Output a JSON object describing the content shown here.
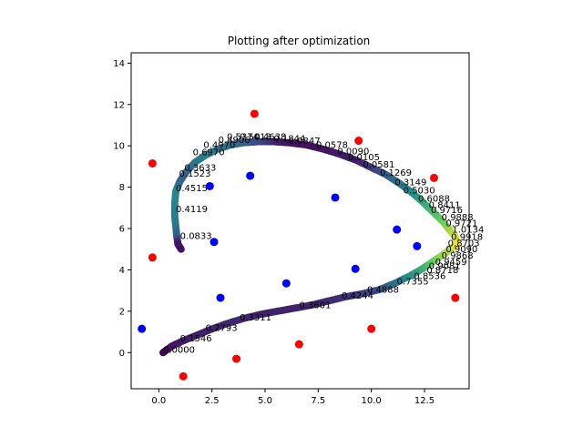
{
  "chart_data": {
    "type": "scatter",
    "title": "Plotting after optimization",
    "xlabel": "",
    "ylabel": "",
    "xlim": [
      -1.3,
      14.6
    ],
    "ylim": [
      -1.75,
      14.5
    ],
    "xticks": [
      0.0,
      2.5,
      5.0,
      7.5,
      10.0,
      12.5
    ],
    "xtick_labels": [
      "0.0",
      "2.5",
      "5.0",
      "7.5",
      "10.0",
      "12.5"
    ],
    "yticks": [
      0,
      2,
      4,
      6,
      8,
      10,
      12,
      14
    ],
    "ytick_labels": [
      "0",
      "2",
      "4",
      "6",
      "8",
      "10",
      "12",
      "14"
    ],
    "grid": false,
    "colors": {
      "red": "#ff0000",
      "blue": "#0000ff",
      "colormap": "viridis"
    },
    "red_points": [
      {
        "x": -0.3,
        "y": 9.15
      },
      {
        "x": -0.3,
        "y": 4.6
      },
      {
        "x": 1.15,
        "y": -1.15
      },
      {
        "x": 3.65,
        "y": -0.3
      },
      {
        "x": 4.5,
        "y": 11.55
      },
      {
        "x": 6.6,
        "y": 0.4
      },
      {
        "x": 9.4,
        "y": 10.25
      },
      {
        "x": 10.0,
        "y": 1.15
      },
      {
        "x": 12.95,
        "y": 8.45
      },
      {
        "x": 13.95,
        "y": 2.65
      }
    ],
    "blue_points": [
      {
        "x": -0.8,
        "y": 1.15
      },
      {
        "x": 2.9,
        "y": 2.65
      },
      {
        "x": 2.4,
        "y": 8.05
      },
      {
        "x": 2.6,
        "y": 5.35
      },
      {
        "x": 4.3,
        "y": 8.55
      },
      {
        "x": 6.0,
        "y": 3.35
      },
      {
        "x": 8.3,
        "y": 7.5
      },
      {
        "x": 9.25,
        "y": 4.05
      },
      {
        "x": 11.2,
        "y": 5.95
      },
      {
        "x": 12.15,
        "y": 5.15
      }
    ],
    "trajectory": {
      "x": [
        0.2,
        0.6,
        1.1,
        1.7,
        2.4,
        3.2,
        4.0,
        4.8,
        5.6,
        6.4,
        7.2,
        8.0,
        8.8,
        9.6,
        10.4,
        11.1,
        11.8,
        12.4,
        12.9,
        13.4,
        13.8,
        14.0,
        14.05,
        13.95,
        13.7,
        13.4,
        12.9,
        12.4,
        11.9,
        11.3,
        10.7,
        10.0,
        9.3,
        8.5,
        7.7,
        6.9,
        6.1,
        5.4,
        4.7,
        4.0,
        3.4,
        2.8,
        2.2,
        1.7,
        1.3,
        1.0,
        0.8,
        0.75,
        0.75,
        0.8,
        0.85,
        0.9,
        1.05
      ],
      "y": [
        0.0,
        0.3,
        0.55,
        0.8,
        1.1,
        1.4,
        1.65,
        1.85,
        2.0,
        2.15,
        2.3,
        2.5,
        2.7,
        2.85,
        3.05,
        3.35,
        3.7,
        4.05,
        4.4,
        4.75,
        5.05,
        5.2,
        5.35,
        5.6,
        5.9,
        6.3,
        6.8,
        7.3,
        7.75,
        8.2,
        8.6,
        8.95,
        9.3,
        9.6,
        9.85,
        10.05,
        10.15,
        10.2,
        10.2,
        10.15,
        10.05,
        9.85,
        9.55,
        9.2,
        8.75,
        8.3,
        7.8,
        7.2,
        6.6,
        6.1,
        5.6,
        5.25,
        5.0
      ],
      "color_values": [
        0.0,
        0.05,
        0.08,
        0.1,
        0.1,
        0.12,
        0.12,
        0.1,
        0.1,
        0.1,
        0.12,
        0.12,
        0.15,
        0.18,
        0.25,
        0.35,
        0.5,
        0.6,
        0.75,
        0.85,
        0.9,
        0.95,
        1.0,
        0.95,
        0.9,
        0.8,
        0.7,
        0.6,
        0.5,
        0.4,
        0.3,
        0.2,
        0.1,
        0.08,
        0.06,
        0.05,
        0.05,
        0.1,
        0.2,
        0.3,
        0.35,
        0.4,
        0.45,
        0.4,
        0.35,
        0.3,
        0.45,
        0.45,
        0.42,
        0.4,
        0.3,
        0.08,
        0.05
      ]
    },
    "annotations": [
      {
        "text": "0.0000",
        "x": 0.2,
        "y": 0.0
      },
      {
        "text": "0.1546",
        "x": 1.0,
        "y": 0.55
      },
      {
        "text": "0.2793",
        "x": 2.2,
        "y": 1.05
      },
      {
        "text": "0.3311",
        "x": 3.8,
        "y": 1.55
      },
      {
        "text": "0.3601",
        "x": 6.6,
        "y": 2.15
      },
      {
        "text": "0.4244",
        "x": 8.6,
        "y": 2.6
      },
      {
        "text": "0.4888",
        "x": 9.8,
        "y": 2.9
      },
      {
        "text": "0.7355",
        "x": 11.2,
        "y": 3.3
      },
      {
        "text": "0.8536",
        "x": 12.0,
        "y": 3.55
      },
      {
        "text": "0.8718",
        "x": 12.6,
        "y": 3.85
      },
      {
        "text": "0.9081",
        "x": 12.7,
        "y": 4.05
      },
      {
        "text": "0.9459",
        "x": 13.0,
        "y": 4.25
      },
      {
        "text": "0.9868",
        "x": 13.3,
        "y": 4.55
      },
      {
        "text": "0.9090",
        "x": 13.5,
        "y": 4.85
      },
      {
        "text": "0.8703",
        "x": 13.6,
        "y": 5.15
      },
      {
        "text": "0.9918",
        "x": 13.75,
        "y": 5.45
      },
      {
        "text": "1.0134",
        "x": 13.8,
        "y": 5.8
      },
      {
        "text": "0.9721",
        "x": 13.5,
        "y": 6.1
      },
      {
        "text": "0.9888",
        "x": 13.3,
        "y": 6.4
      },
      {
        "text": "0.9716",
        "x": 12.8,
        "y": 6.75
      },
      {
        "text": "0.8411",
        "x": 12.7,
        "y": 7.0
      },
      {
        "text": "0.6088",
        "x": 12.2,
        "y": 7.3
      },
      {
        "text": "0.5030",
        "x": 11.5,
        "y": 7.7
      },
      {
        "text": "0.3149",
        "x": 11.1,
        "y": 8.1
      },
      {
        "text": "0.1269",
        "x": 10.4,
        "y": 8.55
      },
      {
        "text": "0.0581",
        "x": 9.6,
        "y": 8.95
      },
      {
        "text": "0.0105",
        "x": 8.9,
        "y": 9.3
      },
      {
        "text": "0.0090",
        "x": 8.4,
        "y": 9.6
      },
      {
        "text": "0.0578",
        "x": 7.4,
        "y": 9.9
      },
      {
        "text": "0.0847",
        "x": 6.1,
        "y": 10.1
      },
      {
        "text": "0.1844",
        "x": 5.4,
        "y": 10.2
      },
      {
        "text": "0.4638",
        "x": 4.5,
        "y": 10.3
      },
      {
        "text": "0.5013",
        "x": 3.8,
        "y": 10.3
      },
      {
        "text": "0.5374",
        "x": 3.2,
        "y": 10.3
      },
      {
        "text": "0.4906",
        "x": 2.8,
        "y": 10.15
      },
      {
        "text": "0.4970",
        "x": 2.1,
        "y": 9.9
      },
      {
        "text": "0.6970",
        "x": 1.6,
        "y": 9.55
      },
      {
        "text": "0.3633",
        "x": 1.2,
        "y": 8.8
      },
      {
        "text": "0.1523",
        "x": 0.95,
        "y": 8.5
      },
      {
        "text": "0.4515",
        "x": 0.8,
        "y": 7.8
      },
      {
        "text": "0.4119",
        "x": 0.8,
        "y": 6.8
      },
      {
        "text": "0.0833",
        "x": 1.0,
        "y": 5.5
      }
    ]
  }
}
